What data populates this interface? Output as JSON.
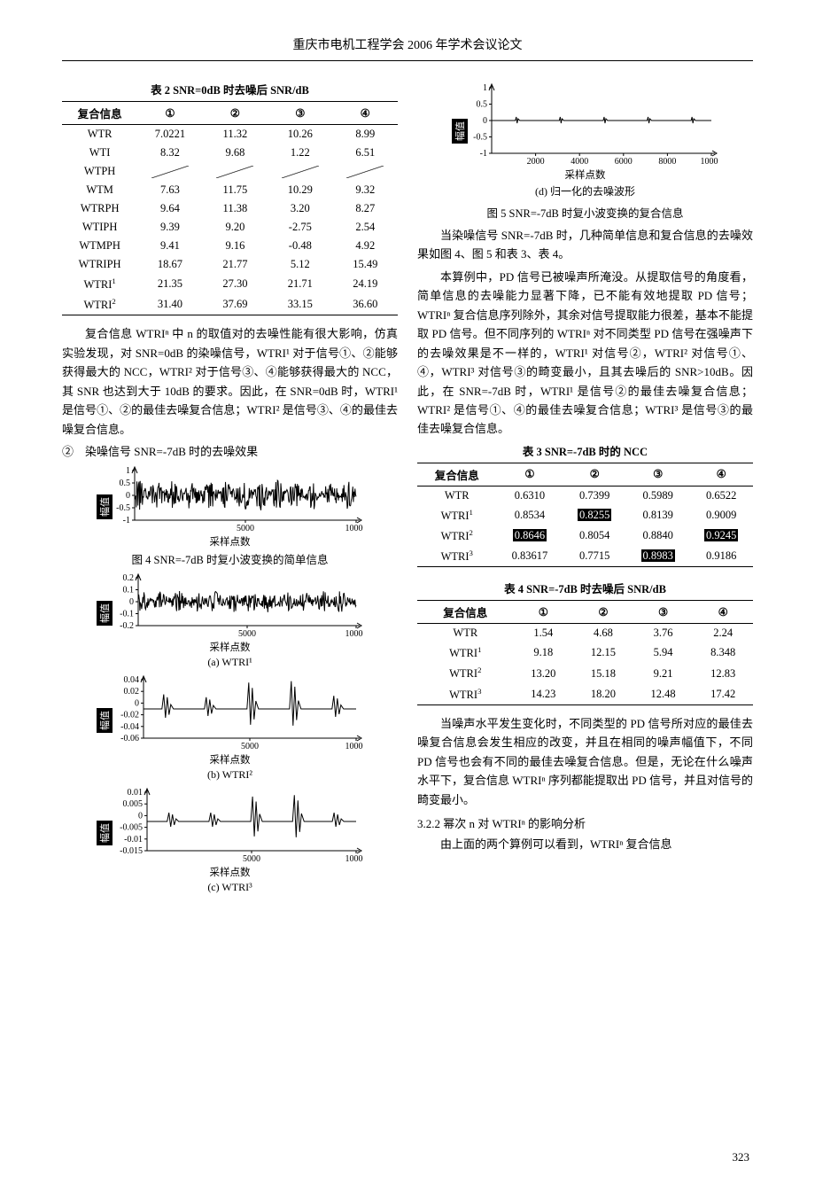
{
  "page_header": "重庆市电机工程学会 2006 年学术会议论文",
  "page_number": "323",
  "left": {
    "table2": {
      "caption": "表 2 SNR=0dB 时去噪后 SNR/dB",
      "headers": [
        "复合信息",
        "①",
        "②",
        "③",
        "④"
      ],
      "rows": [
        {
          "label": "WTR",
          "cells": [
            "7.0221",
            "11.32",
            "10.26",
            "8.99"
          ]
        },
        {
          "label": "WTI",
          "cells": [
            "8.32",
            "9.68",
            "1.22",
            "6.51"
          ]
        },
        {
          "label": "WTPH",
          "cells": [
            "diag",
            "diag",
            "diag",
            "diag"
          ]
        },
        {
          "label": "WTM",
          "cells": [
            "7.63",
            "11.75",
            "10.29",
            "9.32"
          ]
        },
        {
          "label": "WTRPH",
          "cells": [
            "9.64",
            "11.38",
            "3.20",
            "8.27"
          ]
        },
        {
          "label": "WTIPH",
          "cells": [
            "9.39",
            "9.20",
            "-2.75",
            "2.54"
          ]
        },
        {
          "label": "WTMPH",
          "cells": [
            "9.41",
            "9.16",
            "-0.48",
            "4.92"
          ]
        },
        {
          "label": "WTRIPH",
          "cells": [
            "18.67",
            "21.77",
            "5.12",
            "15.49"
          ]
        },
        {
          "label": "WTRI¹",
          "cells": [
            "21.35",
            "27.30",
            "21.71",
            "24.19"
          ]
        },
        {
          "label": "WTRI²",
          "cells": [
            "31.40",
            "37.69",
            "33.15",
            "36.60"
          ]
        }
      ]
    },
    "para1": "复合信息 WTRIⁿ 中 n 的取值对的去噪性能有很大影响，仿真实验发现，对 SNR=0dB 的染噪信号，WTRI¹ 对于信号①、②能够获得最大的 NCC，WTRI² 对于信号③、④能够获得最大的 NCC，其 SNR 也达到大于 10dB 的要求。因此，在 SNR=0dB 时，WTRI¹ 是信号①、②的最佳去噪复合信息；WTRI² 是信号③、④的最佳去噪复合信息。",
    "list2": "②　染噪信号 SNR=-7dB 时的去噪效果",
    "chart_top": {
      "ylim": [
        -1,
        1
      ],
      "yticks": [
        -1,
        -0.5,
        0,
        0.5,
        1
      ],
      "xlim": [
        0,
        10000
      ],
      "xticks": [
        5000,
        10000
      ],
      "ylabel": "幅值",
      "xlabel": "采样点数",
      "caption": "图 4 SNR=-7dB 时复小波变换的简单信息",
      "wave_amp": 0.62
    },
    "chart_a": {
      "ylim": [
        -0.2,
        0.2
      ],
      "yticks": [
        -0.2,
        -0.1,
        0,
        0.1,
        0.2
      ],
      "xlim": [
        0,
        10000
      ],
      "xticks": [
        5000,
        10000
      ],
      "ylabel": "幅值",
      "xlabel": "采样点数",
      "sublabel": "(a)  WTRI¹",
      "wave_amp": 0.45
    },
    "chart_b": {
      "ylim": [
        -0.06,
        0.04
      ],
      "yticks": [
        -0.06,
        -0.04,
        -0.02,
        0,
        0.02,
        0.04
      ],
      "xlim": [
        0,
        10000
      ],
      "xticks": [
        5000,
        10000
      ],
      "ylabel": "幅值",
      "xlabel": "采样点数",
      "sublabel": "(b)  WTRI²"
    },
    "chart_c": {
      "ylim": [
        -0.015,
        0.01
      ],
      "yticks": [
        -0.015,
        -0.01,
        -0.005,
        0,
        0.005,
        0.01
      ],
      "xlim": [
        0,
        10000
      ],
      "xticks": [
        5000,
        10000
      ],
      "ylabel": "幅值",
      "xlabel": "采样点数",
      "sublabel": "(c)  WTRI³"
    }
  },
  "right": {
    "chart_d": {
      "ylim": [
        -1,
        1
      ],
      "yticks": [
        -1,
        -0.5,
        0,
        0.5,
        1
      ],
      "xlim": [
        0,
        10000
      ],
      "xticks": [
        2000,
        4000,
        6000,
        8000,
        10000
      ],
      "ylabel": "幅值",
      "xlabel": "采样点数",
      "sublabel": "(d)  归一化的去噪波形",
      "caption": "图 5 SNR=-7dB 时复小波变换的复合信息"
    },
    "para2": "当染噪信号 SNR=-7dB 时，几种简单信息和复合信息的去噪效果如图 4、图 5 和表 3、表 4。",
    "para3": "本算例中，PD 信号已被噪声所淹没。从提取信号的角度看，简单信息的去噪能力显著下降，已不能有效地提取 PD 信号；WTRIⁿ 复合信息序列除外，其余对信号提取能力很差，基本不能提取 PD 信号。但不同序列的 WTRIⁿ 对不同类型 PD 信号在强噪声下的去噪效果是不一样的，WTRI¹ 对信号②，WTRI² 对信号①、④，WTRI³ 对信号③的畸变最小，且其去噪后的 SNR>10dB。因此，在 SNR=-7dB 时，WTRI¹ 是信号②的最佳去噪复合信息；WTRI² 是信号①、④的最佳去噪复合信息；WTRI³ 是信号③的最佳去噪复合信息。",
    "table3": {
      "caption": "表 3 SNR=-7dB 时的 NCC",
      "headers": [
        "复合信息",
        "①",
        "②",
        "③",
        "④"
      ],
      "rows": [
        {
          "label": "WTR",
          "cells": [
            "0.6310",
            "0.7399",
            "0.5989",
            "0.6522"
          ]
        },
        {
          "label": "WTRI¹",
          "cells": [
            "0.8534",
            "0.8255",
            "0.8139",
            "0.9009"
          ],
          "hl": [
            1
          ]
        },
        {
          "label": "WTRI²",
          "cells": [
            "0.8646",
            "0.8054",
            "0.8840",
            "0.9245"
          ],
          "hl": [
            0,
            3
          ]
        },
        {
          "label": "WTRI³",
          "cells": [
            "0.83617",
            "0.7715",
            "0.8983",
            "0.9186"
          ],
          "hl": [
            2
          ]
        }
      ]
    },
    "table4": {
      "caption": "表 4 SNR=-7dB 时去噪后 SNR/dB",
      "headers": [
        "复合信息",
        "①",
        "②",
        "③",
        "④"
      ],
      "rows": [
        {
          "label": "WTR",
          "cells": [
            "1.54",
            "4.68",
            "3.76",
            "2.24"
          ]
        },
        {
          "label": "WTRI¹",
          "cells": [
            "9.18",
            "12.15",
            "5.94",
            "8.348"
          ]
        },
        {
          "label": "WTRI²",
          "cells": [
            "13.20",
            "15.18",
            "9.21",
            "12.83"
          ]
        },
        {
          "label": "WTRI³",
          "cells": [
            "14.23",
            "18.20",
            "12.48",
            "17.42"
          ]
        }
      ]
    },
    "para4": "当噪声水平发生变化时，不同类型的 PD 信号所对应的最佳去噪复合信息会发生相应的改变，并且在相同的噪声幅值下，不同 PD 信号也会有不同的最佳去噪复合信息。但是，无论在什么噪声水平下，复合信息 WTRIⁿ 序列都能提取出 PD 信号，并且对信号的畸变最小。",
    "section": "3.2.2  幂次 n 对 WTRIⁿ 的影响分析",
    "para5": "由上面的两个算例可以看到，WTRIⁿ 复合信息"
  }
}
